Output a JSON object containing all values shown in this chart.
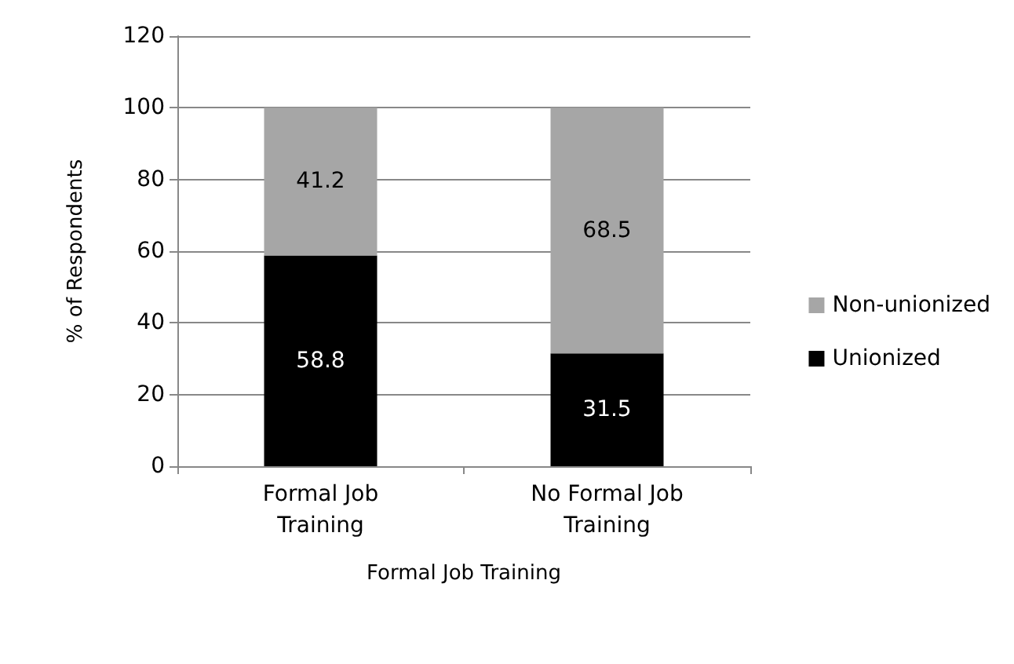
{
  "chart_data": {
    "type": "bar",
    "stacked": true,
    "xlabel": "Formal Job Training",
    "ylabel": "% of Respondents",
    "categories": [
      "Formal Job Training",
      "No Formal Job Training"
    ],
    "series": [
      {
        "name": "Unionized",
        "color": "#000000",
        "values": [
          58.8,
          31.5
        ]
      },
      {
        "name": "Non-unionized",
        "color": "#a6a6a6",
        "values": [
          41.2,
          68.5
        ]
      }
    ],
    "ylim": [
      0,
      120
    ],
    "yticks": [
      0,
      20,
      40,
      60,
      80,
      100,
      120
    ],
    "grid": "y",
    "legend": "right",
    "data_labels": true
  }
}
